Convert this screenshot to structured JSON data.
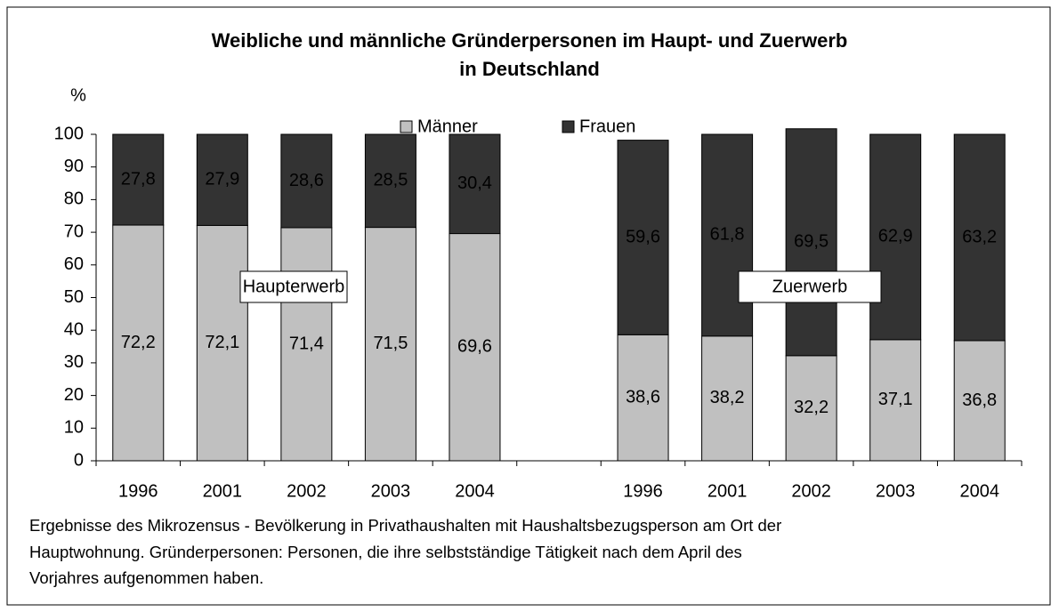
{
  "chart_data": {
    "type": "stacked_bar",
    "title": [
      "Weibliche und männliche Gründerpersonen im Haupt- und Zuerwerb",
      "in Deutschland"
    ],
    "y_label": "%",
    "categories": [
      "1996",
      "2001",
      "2002",
      "2003",
      "2004",
      null,
      "1996",
      "2001",
      "2002",
      "2003",
      "2004"
    ],
    "series": [
      {
        "name": "Männer",
        "color": "#c0c0c0",
        "values": [
          72.2,
          72.1,
          71.4,
          71.5,
          69.6,
          null,
          38.6,
          38.2,
          32.2,
          37.1,
          36.8
        ],
        "value_labels": [
          "72,2",
          "72,1",
          "71,4",
          "71,5",
          "69,6",
          null,
          "38,6",
          "38,2",
          "32,2",
          "37,1",
          "36,8"
        ]
      },
      {
        "name": "Frauen",
        "color": "#333333",
        "values": [
          27.8,
          27.9,
          28.6,
          28.5,
          30.4,
          null,
          59.6,
          61.8,
          69.5,
          62.9,
          63.2
        ],
        "value_labels": [
          "27,8",
          "27,9",
          "28,6",
          "28,5",
          "30,4",
          null,
          "59,6",
          "61,8",
          "69,5",
          "62,9",
          "63,2"
        ]
      }
    ],
    "ylim": [
      0,
      100
    ],
    "yticks": [
      0,
      10,
      20,
      30,
      40,
      50,
      60,
      70,
      80,
      90,
      100
    ],
    "grid": false,
    "legend": "top",
    "annotations": [
      "Haupterwerb",
      "Zuerwerb"
    ],
    "footnote": [
      "Ergebnisse des Mikrozensus - Bevölkerung in Privathaushalten mit Haushaltsbezugsperson am Ort der",
      "Hauptwohnung. Gründerpersonen: Personen, die ihre selbstständige Tätigkeit nach dem April des",
      "Vorjahres aufgenommen haben."
    ]
  }
}
